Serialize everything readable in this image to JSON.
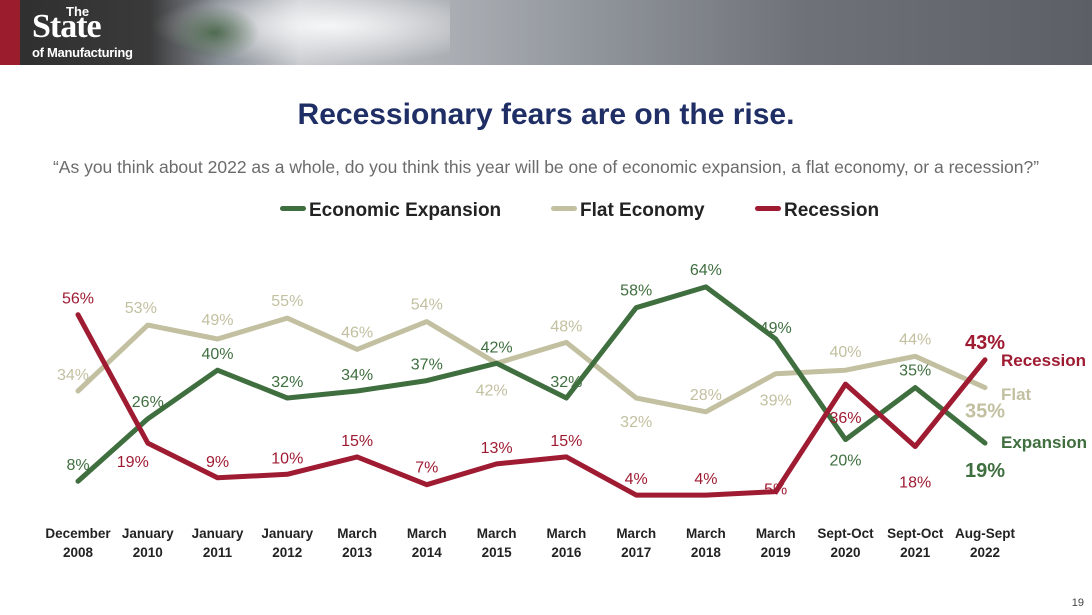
{
  "header": {
    "logo_line1": "The",
    "logo_line2": "State",
    "logo_line3": "of Manufacturing"
  },
  "slide": {
    "page_number": "19"
  },
  "chart_data": {
    "type": "line",
    "title": "Recessionary fears are on the rise.",
    "subtitle": "“As you think about 2022 as a whole, do you think this year will be one of economic expansion, a flat economy, or a recession?”",
    "categories": [
      [
        "December",
        "2008"
      ],
      [
        "January",
        "2010"
      ],
      [
        "January",
        "2011"
      ],
      [
        "January",
        "2012"
      ],
      [
        "March",
        "2013"
      ],
      [
        "March",
        "2014"
      ],
      [
        "March",
        "2015"
      ],
      [
        "March",
        "2016"
      ],
      [
        "March",
        "2017"
      ],
      [
        "March",
        "2018"
      ],
      [
        "March",
        "2019"
      ],
      [
        "Sept-Oct",
        "2020"
      ],
      [
        "Sept-Oct",
        "2021"
      ],
      [
        "Aug-Sept",
        "2022"
      ]
    ],
    "ylim": [
      0,
      70
    ],
    "grid": false,
    "legend_position": "top",
    "series": [
      {
        "name": "Economic Expansion",
        "end_label": "Expansion",
        "color": "#3f6e3f",
        "values": [
          8,
          26,
          40,
          32,
          34,
          37,
          42,
          32,
          58,
          64,
          49,
          20,
          35,
          19
        ],
        "labels": [
          "8%",
          "26%",
          "40%",
          "32%",
          "34%",
          "37%",
          "42%",
          "32%",
          "58%",
          "64%",
          "49%",
          "20%",
          "35%",
          "19%"
        ]
      },
      {
        "name": "Flat Economy",
        "end_label": "Flat",
        "color": "#c2c0a0",
        "values": [
          34,
          53,
          49,
          55,
          46,
          54,
          42,
          48,
          32,
          28,
          39,
          40,
          44,
          35
        ],
        "labels": [
          "34%",
          "53%",
          "49%",
          "55%",
          "46%",
          "54%",
          "42%",
          "48%",
          "32%",
          "28%",
          "39%",
          "40%",
          "44%",
          "35%"
        ]
      },
      {
        "name": "Recession",
        "end_label": "Recession",
        "color": "#9e1b32",
        "values": [
          56,
          19,
          9,
          10,
          15,
          7,
          13,
          15,
          4,
          4,
          5,
          36,
          18,
          43
        ],
        "labels": [
          "56%",
          "19%",
          "9%",
          "10%",
          "15%",
          "7%",
          "13%",
          "15%",
          "4%",
          "4%",
          "5%",
          "36%",
          "18%",
          "43%"
        ]
      }
    ]
  }
}
